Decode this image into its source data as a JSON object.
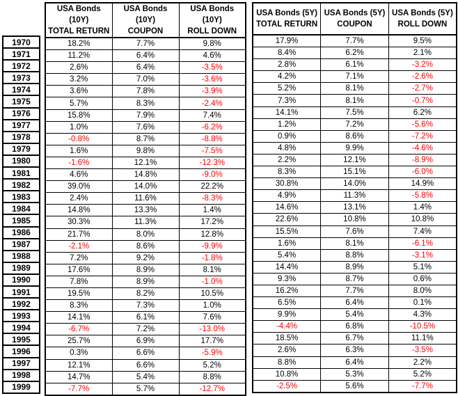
{
  "colors": {
    "text": "#000000",
    "negative_value": "#ff0000",
    "border": "#000000",
    "background": "#ffffff"
  },
  "chart_data": {
    "type": "table",
    "title": "",
    "layout": {
      "grid": "on",
      "negative_values_in_red": true,
      "row_label_column": "year"
    },
    "groups": [
      {
        "name": "USA Bonds (10Y)",
        "columns": [
          {
            "line1": "USA Bonds (10Y)",
            "line2": "TOTAL RETURN"
          },
          {
            "line1": "USA Bonds (10Y)",
            "line2": "COUPON"
          },
          {
            "line1": "USA Bonds (10Y)",
            "line2": "ROLL DOWN"
          }
        ]
      },
      {
        "name": "USA Bonds (5Y)",
        "columns": [
          {
            "line1": "USA Bonds (5Y)",
            "line2": "TOTAL RETURN"
          },
          {
            "line1": "USA Bonds (5Y)",
            "line2": "COUPON"
          },
          {
            "line1": "USA Bonds (5Y)",
            "line2": "ROLL DOWN"
          }
        ]
      }
    ],
    "rows": [
      {
        "year": "1970",
        "values": [
          "18.2%",
          "7.7%",
          "9.8%",
          "17.9%",
          "7.7%",
          "9.5%"
        ]
      },
      {
        "year": "1971",
        "values": [
          "11.2%",
          "6.4%",
          "4.6%",
          "8.4%",
          "6.2%",
          "2.1%"
        ]
      },
      {
        "year": "1972",
        "values": [
          "2.6%",
          "6.4%",
          "-3.5%",
          "2.8%",
          "6.1%",
          "-3.2%"
        ]
      },
      {
        "year": "1973",
        "values": [
          "3.2%",
          "7.0%",
          "-3.6%",
          "4.2%",
          "7.1%",
          "-2.6%"
        ]
      },
      {
        "year": "1974",
        "values": [
          "3.6%",
          "7.8%",
          "-3.9%",
          "5.2%",
          "8.1%",
          "-2.7%"
        ]
      },
      {
        "year": "1975",
        "values": [
          "5.7%",
          "8.3%",
          "-2.4%",
          "7.3%",
          "8.1%",
          "-0.7%"
        ]
      },
      {
        "year": "1976",
        "values": [
          "15.8%",
          "7.9%",
          "7.4%",
          "14.1%",
          "7.5%",
          "6.2%"
        ]
      },
      {
        "year": "1977",
        "values": [
          "1.0%",
          "7.6%",
          "-6.2%",
          "1.2%",
          "7.2%",
          "-5.6%"
        ]
      },
      {
        "year": "1978",
        "values": [
          "-0.8%",
          "8.7%",
          "-8.8%",
          "0.9%",
          "8.6%",
          "-7.2%"
        ]
      },
      {
        "year": "1979",
        "values": [
          "1.6%",
          "9.8%",
          "-7.5%",
          "4.8%",
          "9.9%",
          "-4.6%"
        ]
      },
      {
        "year": "1980",
        "values": [
          "-1.6%",
          "12.1%",
          "-12.3%",
          "2.2%",
          "12.1%",
          "-8.9%"
        ]
      },
      {
        "year": "1981",
        "values": [
          "4.6%",
          "14.8%",
          "-9.0%",
          "8.3%",
          "15.1%",
          "-6.0%"
        ]
      },
      {
        "year": "1982",
        "values": [
          "39.0%",
          "14.0%",
          "22.2%",
          "30.8%",
          "14.0%",
          "14.9%"
        ]
      },
      {
        "year": "1983",
        "values": [
          "2.4%",
          "11.6%",
          "-8.3%",
          "4.9%",
          "11.3%",
          "-5.8%"
        ]
      },
      {
        "year": "1984",
        "values": [
          "14.8%",
          "13.3%",
          "1.4%",
          "14.6%",
          "13.1%",
          "1.4%"
        ]
      },
      {
        "year": "1985",
        "values": [
          "30.3%",
          "11.3%",
          "17.2%",
          "22.6%",
          "10.8%",
          "10.8%"
        ]
      },
      {
        "year": "1986",
        "values": [
          "21.7%",
          "8.0%",
          "12.8%",
          "15.5%",
          "7.6%",
          "7.4%"
        ]
      },
      {
        "year": "1987",
        "values": [
          "-2.1%",
          "8.6%",
          "-9.9%",
          "1.6%",
          "8.1%",
          "-6.1%"
        ]
      },
      {
        "year": "1988",
        "values": [
          "7.2%",
          "9.2%",
          "-1.8%",
          "5.4%",
          "8.8%",
          "-3.1%"
        ]
      },
      {
        "year": "1989",
        "values": [
          "17.6%",
          "8.9%",
          "8.1%",
          "14.4%",
          "8.9%",
          "5.1%"
        ]
      },
      {
        "year": "1990",
        "values": [
          "7.8%",
          "8.9%",
          "-1.0%",
          "9.3%",
          "8.7%",
          "0.6%"
        ]
      },
      {
        "year": "1991",
        "values": [
          "19.5%",
          "8.2%",
          "10.5%",
          "16.2%",
          "7.7%",
          "8.0%"
        ]
      },
      {
        "year": "1992",
        "values": [
          "8.3%",
          "7.3%",
          "1.0%",
          "6.5%",
          "6.4%",
          "0.1%"
        ]
      },
      {
        "year": "1993",
        "values": [
          "14.1%",
          "6.1%",
          "7.6%",
          "9.9%",
          "5.4%",
          "4.3%"
        ]
      },
      {
        "year": "1994",
        "values": [
          "-6.7%",
          "7.2%",
          "-13.0%",
          "-4.4%",
          "6.8%",
          "-10.5%"
        ]
      },
      {
        "year": "1995",
        "values": [
          "25.7%",
          "6.9%",
          "17.7%",
          "18.5%",
          "6.7%",
          "11.1%"
        ]
      },
      {
        "year": "1996",
        "values": [
          "0.3%",
          "6.6%",
          "-5.9%",
          "2.6%",
          "6.3%",
          "-3.5%"
        ]
      },
      {
        "year": "1997",
        "values": [
          "12.1%",
          "6.6%",
          "5.2%",
          "8.8%",
          "6.4%",
          "2.2%"
        ]
      },
      {
        "year": "1998",
        "values": [
          "14.7%",
          "5.4%",
          "8.8%",
          "10.8%",
          "5.3%",
          "5.2%"
        ]
      },
      {
        "year": "1999",
        "values": [
          "-7.7%",
          "5.7%",
          "-12.7%",
          "-2.5%",
          "5.6%",
          "-7.7%"
        ]
      }
    ]
  }
}
